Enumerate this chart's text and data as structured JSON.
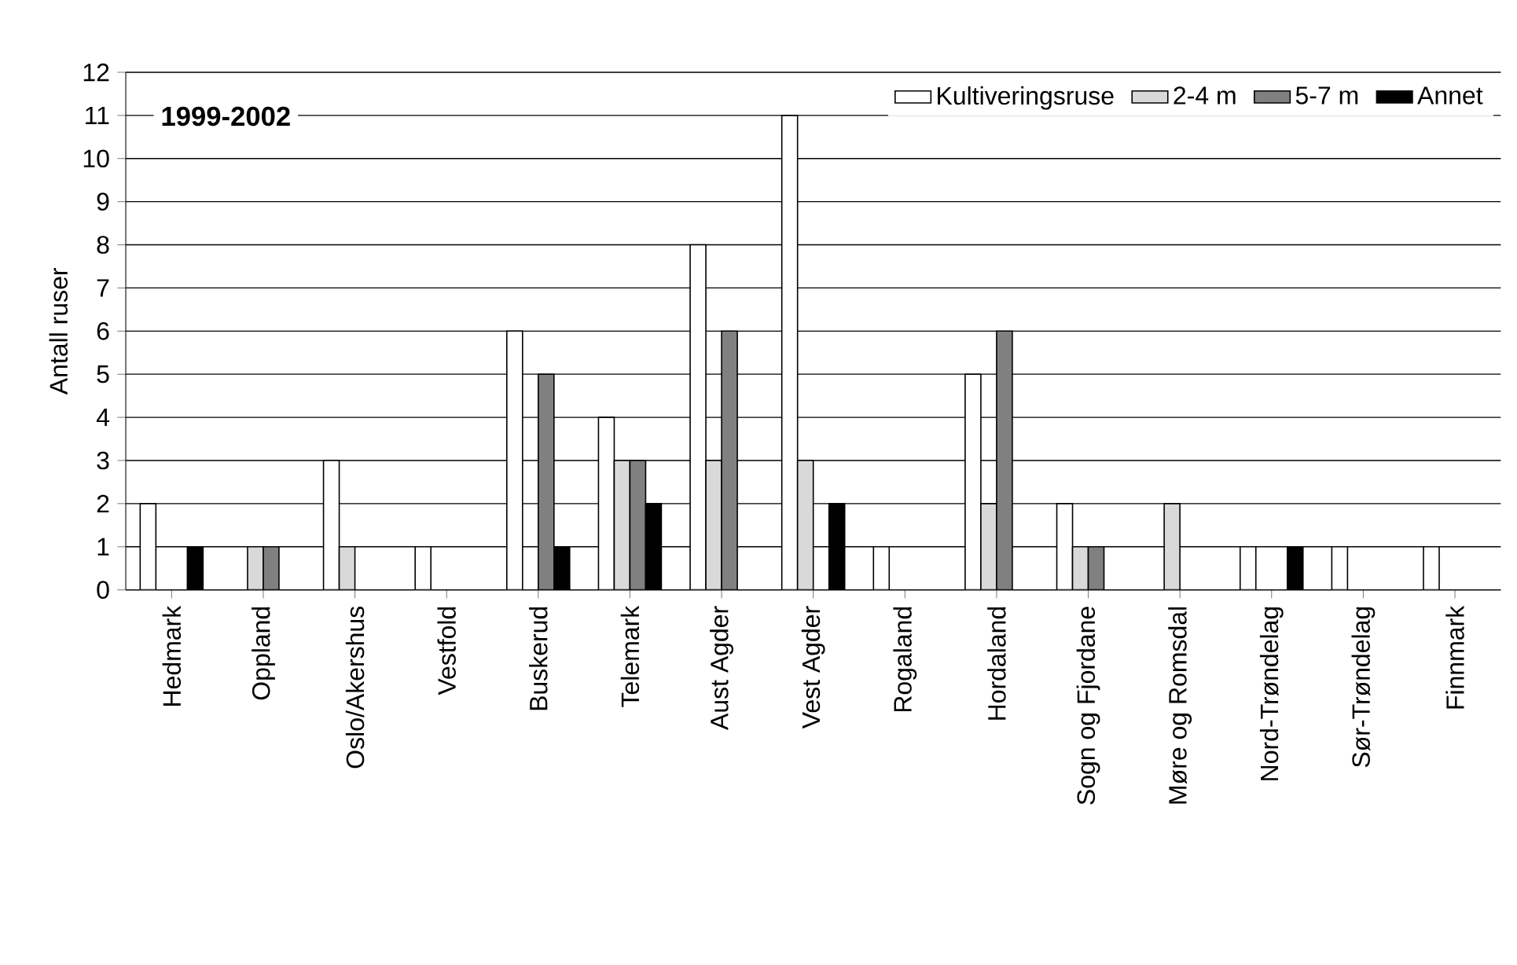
{
  "chart_data": {
    "type": "bar",
    "title": "1999-2002",
    "ylabel": "Antall ruser",
    "categories": [
      "Hedmark",
      "Oppland",
      "Oslo/Akershus",
      "Vestfold",
      "Buskerud",
      "Telemark",
      "Aust Agder",
      "Vest Agder",
      "Rogaland",
      "Hordaland",
      "Sogn og Fjordane",
      "Møre og Romsdal",
      "Nord-Trøndelag",
      "Sør-Trøndelag",
      "Finnmark"
    ],
    "series": [
      {
        "name": "Kultiveringsruse",
        "color": "#ffffff",
        "values": [
          2,
          0,
          3,
          1,
          6,
          4,
          8,
          11,
          1,
          5,
          2,
          0,
          1,
          1,
          1
        ]
      },
      {
        "name": "2-4 m",
        "color": "#d9d9d9",
        "values": [
          0,
          1,
          1,
          0,
          0,
          3,
          3,
          3,
          0,
          2,
          1,
          2,
          0,
          0,
          0
        ]
      },
      {
        "name": "5-7 m",
        "color": "#808080",
        "values": [
          0,
          1,
          0,
          0,
          5,
          3,
          6,
          0,
          0,
          6,
          1,
          0,
          0,
          0,
          0
        ]
      },
      {
        "name": "Annet",
        "color": "#000000",
        "values": [
          1,
          0,
          0,
          0,
          1,
          2,
          0,
          2,
          0,
          0,
          0,
          0,
          1,
          0,
          0
        ]
      }
    ],
    "ylim": [
      0,
      12
    ],
    "yticks": [
      0,
      1,
      2,
      3,
      4,
      5,
      6,
      7,
      8,
      9,
      10,
      11,
      12
    ],
    "grid": "y",
    "legend": "top right"
  }
}
